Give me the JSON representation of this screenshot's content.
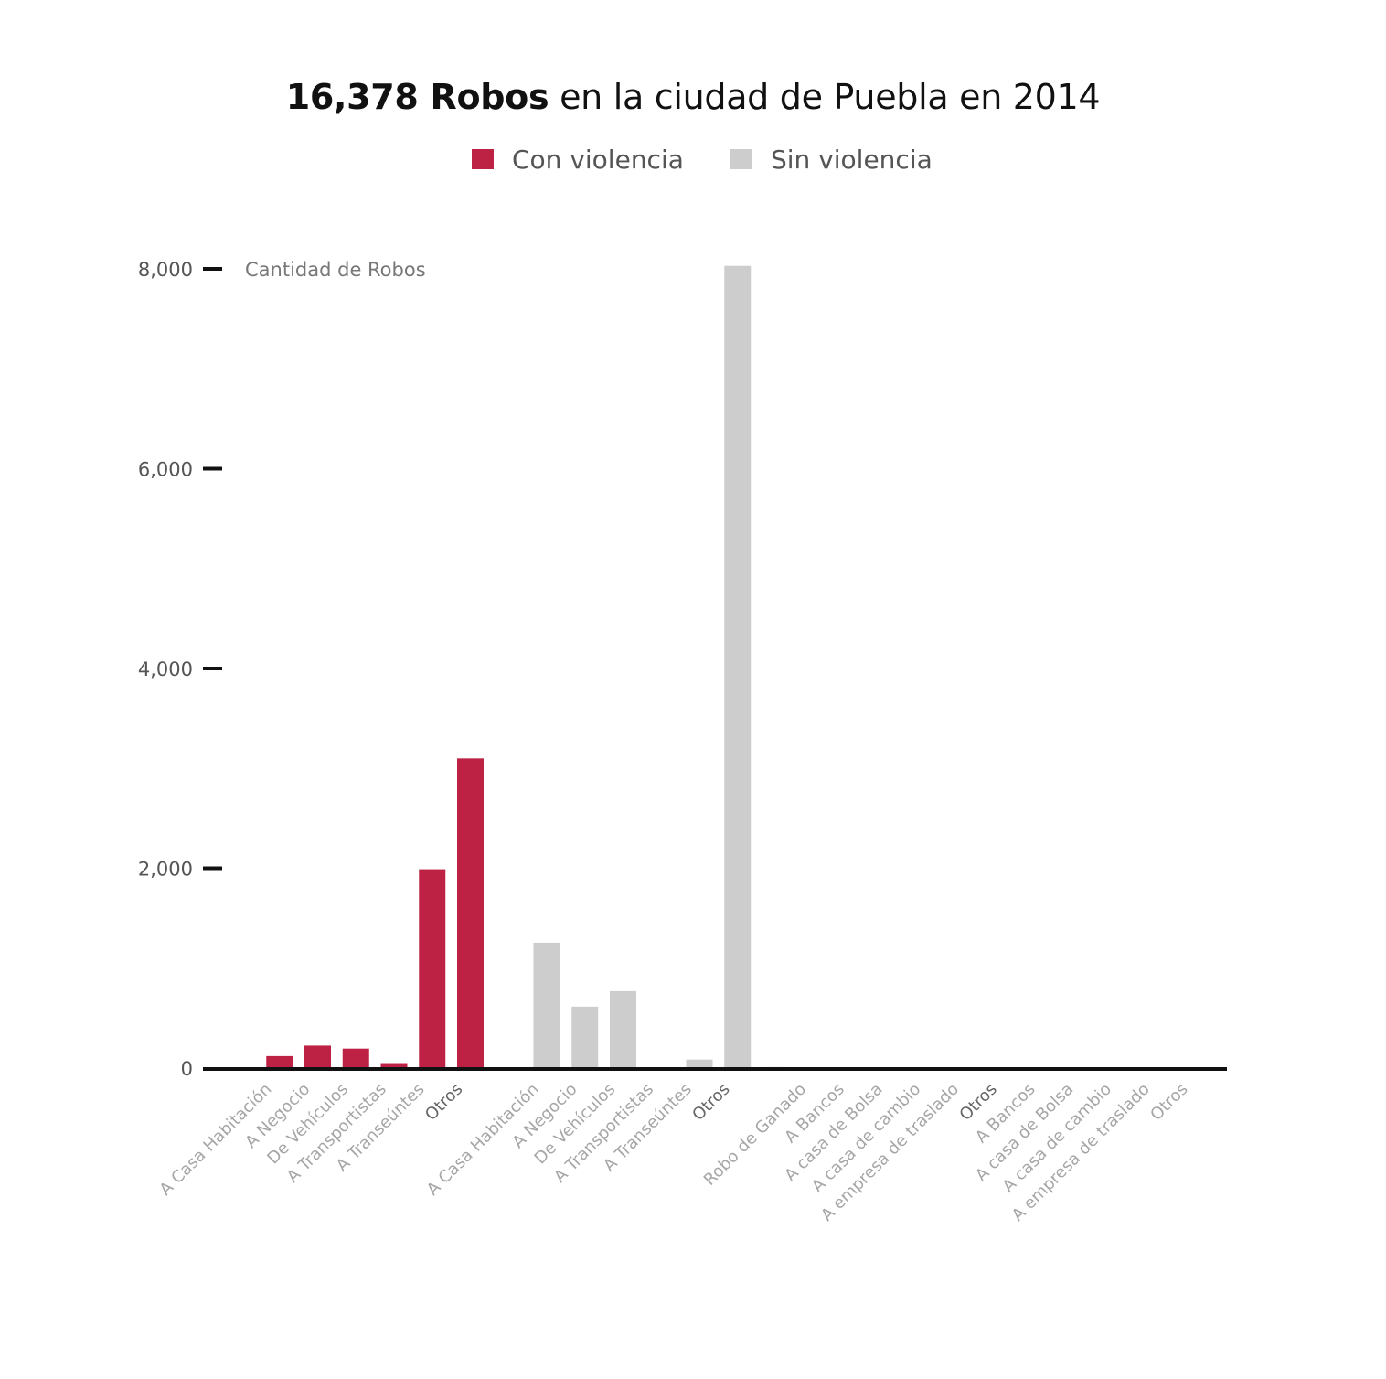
{
  "title": {
    "bold": "16,378 Robos",
    "rest": " en la ciudad de Puebla en 2014"
  },
  "legend": [
    {
      "label": "Con violencia",
      "color": "#BD2244"
    },
    {
      "label": "Sin violencia",
      "color": "#CDCDCD"
    }
  ],
  "chart_data": {
    "type": "bar",
    "ylabel": "Cantidad de Robos",
    "ylim": [
      0,
      8000
    ],
    "yticks": [
      {
        "value": 0,
        "label": "0"
      },
      {
        "value": 2000,
        "label": "2,000"
      },
      {
        "value": 4000,
        "label": "4,000"
      },
      {
        "value": 6000,
        "label": "6,000"
      },
      {
        "value": 8000,
        "label": "8,000"
      }
    ],
    "colors": {
      "con": "#BD2244",
      "sin": "#CDCDCD",
      "label": "#A6A6A6",
      "label_dark": "#666666"
    },
    "categories": [
      {
        "label": "A Casa Habitación",
        "value": 0,
        "group": "con"
      },
      {
        "label": "A Negocio",
        "value": 120,
        "group": "con"
      },
      {
        "label": "De Vehículos",
        "value": 225,
        "group": "con"
      },
      {
        "label": "A Transportistas",
        "value": 195,
        "group": "con"
      },
      {
        "label": "A Transeúntes",
        "value": 50,
        "group": "con"
      },
      {
        "label": "Otros",
        "value": 1990,
        "group": "con",
        "dark": true
      },
      {
        "label": "",
        "value": 3100,
        "group": "con"
      },
      {
        "label": "A Casa Habitación",
        "value": 0,
        "group": "sin"
      },
      {
        "label": "A Negocio",
        "value": 1255,
        "group": "sin"
      },
      {
        "label": "De Vehículos",
        "value": 615,
        "group": "sin"
      },
      {
        "label": "A Transportistas",
        "value": 770,
        "group": "sin"
      },
      {
        "label": "A Transeúntes",
        "value": 0,
        "group": "sin"
      },
      {
        "label": "Otros",
        "value": 85,
        "group": "sin",
        "dark": true
      },
      {
        "label": "",
        "value": 8030,
        "group": "sin"
      },
      {
        "label": "Robo de Ganado",
        "value": 10,
        "group": "sin"
      },
      {
        "label": "A Bancos",
        "value": 0,
        "group": "sin"
      },
      {
        "label": "A casa de Bolsa",
        "value": 0,
        "group": "sin"
      },
      {
        "label": "A casa de cambio",
        "value": 0,
        "group": "sin"
      },
      {
        "label": "A empresa de traslado",
        "value": 0,
        "group": "sin"
      },
      {
        "label": "Otros",
        "value": 0,
        "group": "sin",
        "dark": true
      },
      {
        "label": "A Bancos",
        "value": 0,
        "group": "sin"
      },
      {
        "label": "A casa de Bolsa",
        "value": 0,
        "group": "sin"
      },
      {
        "label": "A casa de cambio",
        "value": 0,
        "group": "sin"
      },
      {
        "label": "A empresa de traslado",
        "value": 0,
        "group": "sin"
      },
      {
        "label": "Otros",
        "value": 0,
        "group": "sin"
      }
    ]
  }
}
